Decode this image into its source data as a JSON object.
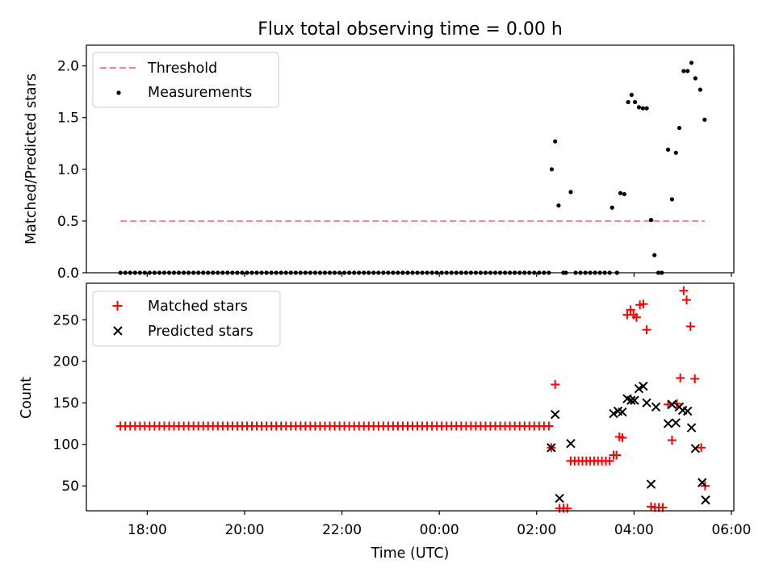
{
  "chart_data": {
    "title": "Flux total observing time = 0.00 h",
    "xlabel": "Time (UTC)",
    "x_unit": "hours since 00:00 UTC",
    "xlim": [
      -7.25,
      6.05
    ],
    "xticks": [
      {
        "value": -6,
        "label": "18:00"
      },
      {
        "value": -4,
        "label": "20:00"
      },
      {
        "value": -2,
        "label": "22:00"
      },
      {
        "value": 0,
        "label": "00:00"
      },
      {
        "value": 2,
        "label": "02:00"
      },
      {
        "value": 4,
        "label": "04:00"
      },
      {
        "value": 6,
        "label": "06:00"
      }
    ],
    "top": {
      "type": "scatter",
      "ylabel": "Matched/Predicted stars",
      "ylim": [
        0,
        2.2
      ],
      "yticks": [
        {
          "value": 0.0,
          "label": "0.0"
        },
        {
          "value": 0.5,
          "label": "0.5"
        },
        {
          "value": 1.0,
          "label": "1.0"
        },
        {
          "value": 1.5,
          "label": "1.5"
        },
        {
          "value": 2.0,
          "label": "2.0"
        }
      ],
      "legend": [
        "Threshold",
        "Measurements"
      ],
      "legend_position": "top-left",
      "threshold": {
        "name": "Threshold",
        "value": 0.5,
        "x_start": -6.55,
        "x_end": 5.45,
        "color": "#ff7f7f"
      },
      "measurements": {
        "name": "Measurements",
        "color": "#000000",
        "zero_run": {
          "start": -6.55,
          "end": 2.25,
          "step": 0.1,
          "value": 0
        },
        "points": [
          [
            2.31,
            1.0
          ],
          [
            2.38,
            1.27
          ],
          [
            2.45,
            0.65
          ],
          [
            2.55,
            0.0
          ],
          [
            2.6,
            0.0
          ],
          [
            2.7,
            0.78
          ],
          [
            2.8,
            0.0
          ],
          [
            2.9,
            0.0
          ],
          [
            3.0,
            0.0
          ],
          [
            3.1,
            0.0
          ],
          [
            3.2,
            0.0
          ],
          [
            3.3,
            0.0
          ],
          [
            3.4,
            0.0
          ],
          [
            3.5,
            0.0
          ],
          [
            3.55,
            0.63
          ],
          [
            3.65,
            0.0
          ],
          [
            3.72,
            0.77
          ],
          [
            3.8,
            0.76
          ],
          [
            3.88,
            1.65
          ],
          [
            3.95,
            1.72
          ],
          [
            4.02,
            1.65
          ],
          [
            4.1,
            1.6
          ],
          [
            4.18,
            1.59
          ],
          [
            4.26,
            1.59
          ],
          [
            4.35,
            0.51
          ],
          [
            4.42,
            0.17
          ],
          [
            4.5,
            0.0
          ],
          [
            4.57,
            0.0
          ],
          [
            4.7,
            1.19
          ],
          [
            4.78,
            0.71
          ],
          [
            4.86,
            1.16
          ],
          [
            4.93,
            1.4
          ],
          [
            5.02,
            1.95
          ],
          [
            5.1,
            1.95
          ],
          [
            5.18,
            2.03
          ],
          [
            5.26,
            1.88
          ],
          [
            5.36,
            1.77
          ],
          [
            5.45,
            1.48
          ]
        ]
      }
    },
    "bottom": {
      "type": "scatter",
      "ylabel": "Count",
      "ylim": [
        20,
        294
      ],
      "yticks": [
        {
          "value": 50,
          "label": "50"
        },
        {
          "value": 100,
          "label": "100"
        },
        {
          "value": 150,
          "label": "150"
        },
        {
          "value": 200,
          "label": "200"
        },
        {
          "value": 250,
          "label": "250"
        }
      ],
      "legend": [
        "Matched stars",
        "Predicted stars"
      ],
      "legend_position": "top-left",
      "matched": {
        "name": "Matched stars",
        "marker": "+",
        "color": "#ff0000",
        "constant_run": {
          "start": -6.55,
          "end": 2.25,
          "step": 0.1,
          "value": 122
        },
        "points": [
          [
            2.3,
            96
          ],
          [
            2.38,
            172
          ],
          [
            2.47,
            23
          ],
          [
            2.55,
            23
          ],
          [
            2.63,
            23
          ],
          [
            2.7,
            80
          ],
          [
            2.78,
            80
          ],
          [
            2.86,
            80
          ],
          [
            2.94,
            80
          ],
          [
            3.02,
            80
          ],
          [
            3.1,
            80
          ],
          [
            3.18,
            80
          ],
          [
            3.26,
            80
          ],
          [
            3.34,
            80
          ],
          [
            3.42,
            80
          ],
          [
            3.5,
            80
          ],
          [
            3.58,
            87
          ],
          [
            3.64,
            87
          ],
          [
            3.7,
            109
          ],
          [
            3.76,
            108
          ],
          [
            3.86,
            256
          ],
          [
            3.93,
            262
          ],
          [
            3.99,
            256
          ],
          [
            4.05,
            253
          ],
          [
            4.12,
            268
          ],
          [
            4.19,
            269
          ],
          [
            4.26,
            238
          ],
          [
            4.35,
            25
          ],
          [
            4.43,
            24
          ],
          [
            4.51,
            24
          ],
          [
            4.59,
            24
          ],
          [
            4.7,
            148
          ],
          [
            4.78,
            105
          ],
          [
            4.88,
            149
          ],
          [
            4.95,
            180
          ],
          [
            5.02,
            285
          ],
          [
            5.08,
            274
          ],
          [
            5.16,
            242
          ],
          [
            5.25,
            179
          ],
          [
            5.38,
            96
          ],
          [
            5.46,
            50
          ]
        ]
      },
      "predicted": {
        "name": "Predicted stars",
        "marker": "x",
        "color": "#000000",
        "points": [
          [
            2.3,
            96
          ],
          [
            2.38,
            136
          ],
          [
            2.47,
            35
          ],
          [
            2.7,
            101
          ],
          [
            3.58,
            137
          ],
          [
            3.67,
            140
          ],
          [
            3.76,
            139
          ],
          [
            3.86,
            155
          ],
          [
            3.94,
            153
          ],
          [
            4.01,
            153
          ],
          [
            4.1,
            167
          ],
          [
            4.19,
            170
          ],
          [
            4.26,
            150
          ],
          [
            4.35,
            52
          ],
          [
            4.45,
            145
          ],
          [
            4.7,
            125
          ],
          [
            4.78,
            148
          ],
          [
            4.86,
            126
          ],
          [
            4.93,
            145
          ],
          [
            5.0,
            141
          ],
          [
            5.1,
            140
          ],
          [
            5.18,
            120
          ],
          [
            5.26,
            95
          ],
          [
            5.4,
            54
          ],
          [
            5.47,
            33
          ]
        ]
      }
    }
  }
}
